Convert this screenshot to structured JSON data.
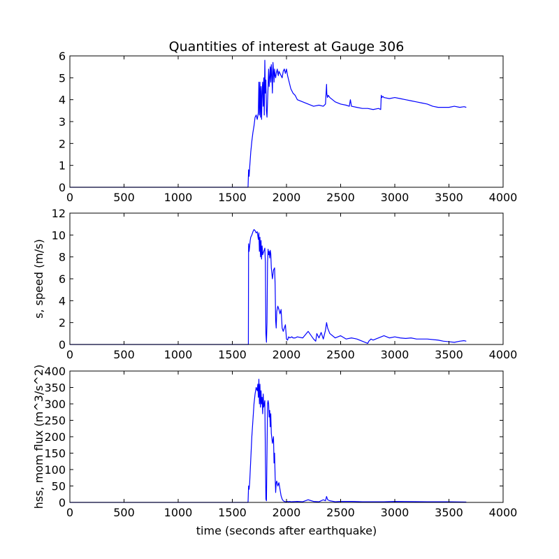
{
  "title": "Quantities of interest at Gauge 306",
  "xlabel": "time (seconds after earthquake)",
  "line_color": "#0000ff",
  "chart_data": [
    {
      "type": "line",
      "ylabel": "",
      "xlim": [
        0,
        4000
      ],
      "ylim": [
        0,
        6
      ],
      "xticks": [
        "0",
        "500",
        "1000",
        "1500",
        "2000",
        "2500",
        "3000",
        "3500",
        "4000"
      ],
      "yticks": [
        "0",
        "1",
        "2",
        "3",
        "4",
        "5",
        "6"
      ],
      "x": [
        0,
        1645,
        1650,
        1655,
        1660,
        1670,
        1680,
        1690,
        1700,
        1710,
        1720,
        1730,
        1740,
        1745,
        1750,
        1755,
        1760,
        1765,
        1770,
        1775,
        1780,
        1785,
        1790,
        1795,
        1800,
        1805,
        1810,
        1815,
        1820,
        1825,
        1830,
        1835,
        1840,
        1845,
        1850,
        1855,
        1860,
        1865,
        1870,
        1875,
        1880,
        1885,
        1890,
        1895,
        1900,
        1905,
        1910,
        1915,
        1920,
        1925,
        1930,
        1940,
        1950,
        1960,
        1970,
        1980,
        1990,
        2000,
        2010,
        2020,
        2040,
        2060,
        2080,
        2100,
        2150,
        2200,
        2250,
        2300,
        2340,
        2360,
        2370,
        2372,
        2378,
        2385,
        2400,
        2450,
        2500,
        2550,
        2580,
        2590,
        2600,
        2650,
        2700,
        2750,
        2800,
        2850,
        2870,
        2875,
        2880,
        2890,
        2900,
        2950,
        3000,
        3050,
        3100,
        3150,
        3200,
        3250,
        3300,
        3350,
        3400,
        3450,
        3500,
        3550,
        3600,
        3640,
        3660
      ],
      "y": [
        0,
        0,
        0.8,
        0.5,
        0.9,
        1.6,
        2.1,
        2.5,
        2.8,
        3.2,
        3.3,
        3.1,
        3.4,
        4.8,
        3.3,
        4.8,
        3.2,
        4.6,
        3.1,
        4.4,
        4.8,
        3.7,
        5.0,
        3.3,
        5.8,
        4.3,
        4.9,
        3.5,
        3.2,
        3.9,
        4.6,
        5.4,
        4.6,
        5.0,
        5.5,
        4.8,
        5.6,
        5.1,
        4.3,
        5.7,
        5.3,
        4.8,
        5.4,
        5.1,
        5.0,
        5.2,
        5.3,
        5.4,
        5.2,
        5.1,
        5.3,
        5.2,
        5.1,
        5.0,
        5.3,
        5.4,
        5.2,
        5.4,
        5.1,
        4.9,
        4.5,
        4.3,
        4.2,
        4.0,
        3.9,
        3.8,
        3.7,
        3.75,
        3.7,
        3.8,
        4.7,
        4.3,
        4.1,
        4.2,
        4.1,
        3.9,
        3.8,
        3.75,
        3.7,
        4.0,
        3.7,
        3.65,
        3.6,
        3.6,
        3.55,
        3.6,
        3.55,
        4.2,
        4.1,
        4.15,
        4.1,
        4.05,
        4.1,
        4.05,
        4.0,
        3.95,
        3.9,
        3.85,
        3.8,
        3.7,
        3.65,
        3.65,
        3.65,
        3.7,
        3.65,
        3.68,
        3.65
      ]
    },
    {
      "type": "line",
      "ylabel": "s, speed (m/s)",
      "xlim": [
        0,
        4000
      ],
      "ylim": [
        0,
        12
      ],
      "xticks": [
        "0",
        "500",
        "1000",
        "1500",
        "2000",
        "2500",
        "3000",
        "3500",
        "4000"
      ],
      "yticks": [
        "0",
        "2",
        "4",
        "6",
        "8",
        "10",
        "12"
      ],
      "x": [
        0,
        1645,
        1648,
        1650,
        1655,
        1660,
        1665,
        1670,
        1680,
        1690,
        1700,
        1710,
        1720,
        1730,
        1740,
        1745,
        1750,
        1755,
        1760,
        1765,
        1770,
        1775,
        1780,
        1790,
        1800,
        1805,
        1810,
        1815,
        1820,
        1825,
        1830,
        1835,
        1840,
        1845,
        1850,
        1855,
        1860,
        1870,
        1880,
        1890,
        1895,
        1900,
        1905,
        1910,
        1920,
        1930,
        1940,
        1950,
        1960,
        1970,
        1980,
        1990,
        2000,
        2010,
        2020,
        2030,
        2040,
        2050,
        2060,
        2080,
        2100,
        2150,
        2200,
        2250,
        2270,
        2280,
        2300,
        2320,
        2340,
        2360,
        2370,
        2380,
        2400,
        2450,
        2500,
        2550,
        2600,
        2650,
        2700,
        2750,
        2760,
        2780,
        2800,
        2850,
        2900,
        2950,
        3000,
        3050,
        3100,
        3150,
        3200,
        3300,
        3400,
        3450,
        3500,
        3550,
        3600,
        3640,
        3660
      ],
      "y": [
        0,
        0,
        0,
        9.2,
        8.5,
        9.0,
        9.5,
        9.8,
        10.0,
        10.3,
        10.5,
        10.4,
        10.2,
        10.3,
        9.6,
        10.2,
        8.5,
        9.8,
        8.0,
        9.5,
        7.8,
        9.0,
        8.2,
        8.5,
        8.8,
        7.5,
        1.0,
        0.2,
        2.0,
        7.5,
        8.7,
        8.2,
        8.5,
        7.9,
        8.6,
        8.3,
        7.0,
        6.0,
        6.8,
        7.0,
        5.5,
        2.2,
        1.5,
        3.0,
        3.5,
        3.2,
        2.8,
        3.2,
        1.5,
        1.2,
        1.5,
        1.8,
        0.5,
        0.4,
        0.7,
        0.6,
        0.65,
        0.7,
        0.6,
        0.6,
        0.7,
        0.6,
        1.2,
        0.5,
        0.3,
        1.0,
        0.6,
        1.1,
        0.5,
        1.3,
        2.0,
        1.5,
        1.0,
        0.6,
        0.8,
        0.5,
        0.6,
        0.5,
        0.3,
        0.1,
        0.3,
        0.5,
        0.4,
        0.6,
        0.8,
        0.6,
        0.7,
        0.6,
        0.55,
        0.6,
        0.5,
        0.5,
        0.4,
        0.3,
        0.25,
        0.2,
        0.3,
        0.35,
        0.3
      ]
    },
    {
      "type": "line",
      "ylabel": "hss, mom flux (m^3/s^2)",
      "xlim": [
        0,
        4000
      ],
      "ylim": [
        0,
        400
      ],
      "xticks": [
        "0",
        "500",
        "1000",
        "1500",
        "2000",
        "2500",
        "3000",
        "3500",
        "4000"
      ],
      "yticks": [
        "0",
        "50",
        "100",
        "150",
        "200",
        "250",
        "300",
        "350",
        "400"
      ],
      "x": [
        0,
        1645,
        1650,
        1655,
        1660,
        1670,
        1680,
        1690,
        1700,
        1710,
        1720,
        1730,
        1735,
        1740,
        1745,
        1750,
        1755,
        1760,
        1765,
        1770,
        1775,
        1780,
        1785,
        1790,
        1800,
        1805,
        1810,
        1815,
        1820,
        1825,
        1830,
        1835,
        1840,
        1845,
        1850,
        1855,
        1860,
        1870,
        1880,
        1885,
        1890,
        1895,
        1900,
        1905,
        1910,
        1920,
        1930,
        1940,
        1950,
        1960,
        1970,
        1980,
        1990,
        2000,
        2010,
        2020,
        2030,
        2040,
        2100,
        2150,
        2200,
        2250,
        2300,
        2340,
        2360,
        2370,
        2380,
        2400,
        2450,
        2500,
        2600,
        2700,
        2800,
        2900,
        3000,
        3300,
        3500,
        3660
      ],
      "y": [
        0,
        0,
        50,
        40,
        60,
        130,
        200,
        250,
        300,
        330,
        350,
        340,
        360,
        320,
        375,
        300,
        360,
        290,
        340,
        300,
        320,
        270,
        330,
        290,
        310,
        150,
        10,
        5,
        150,
        300,
        310,
        300,
        260,
        280,
        230,
        270,
        210,
        180,
        200,
        120,
        150,
        80,
        30,
        60,
        65,
        50,
        60,
        40,
        20,
        10,
        5,
        3,
        2,
        2,
        3,
        2,
        3,
        2,
        3,
        2,
        8,
        3,
        2,
        8,
        5,
        18,
        8,
        5,
        2,
        3,
        3,
        2,
        2,
        2,
        3,
        2,
        2,
        1
      ]
    }
  ]
}
